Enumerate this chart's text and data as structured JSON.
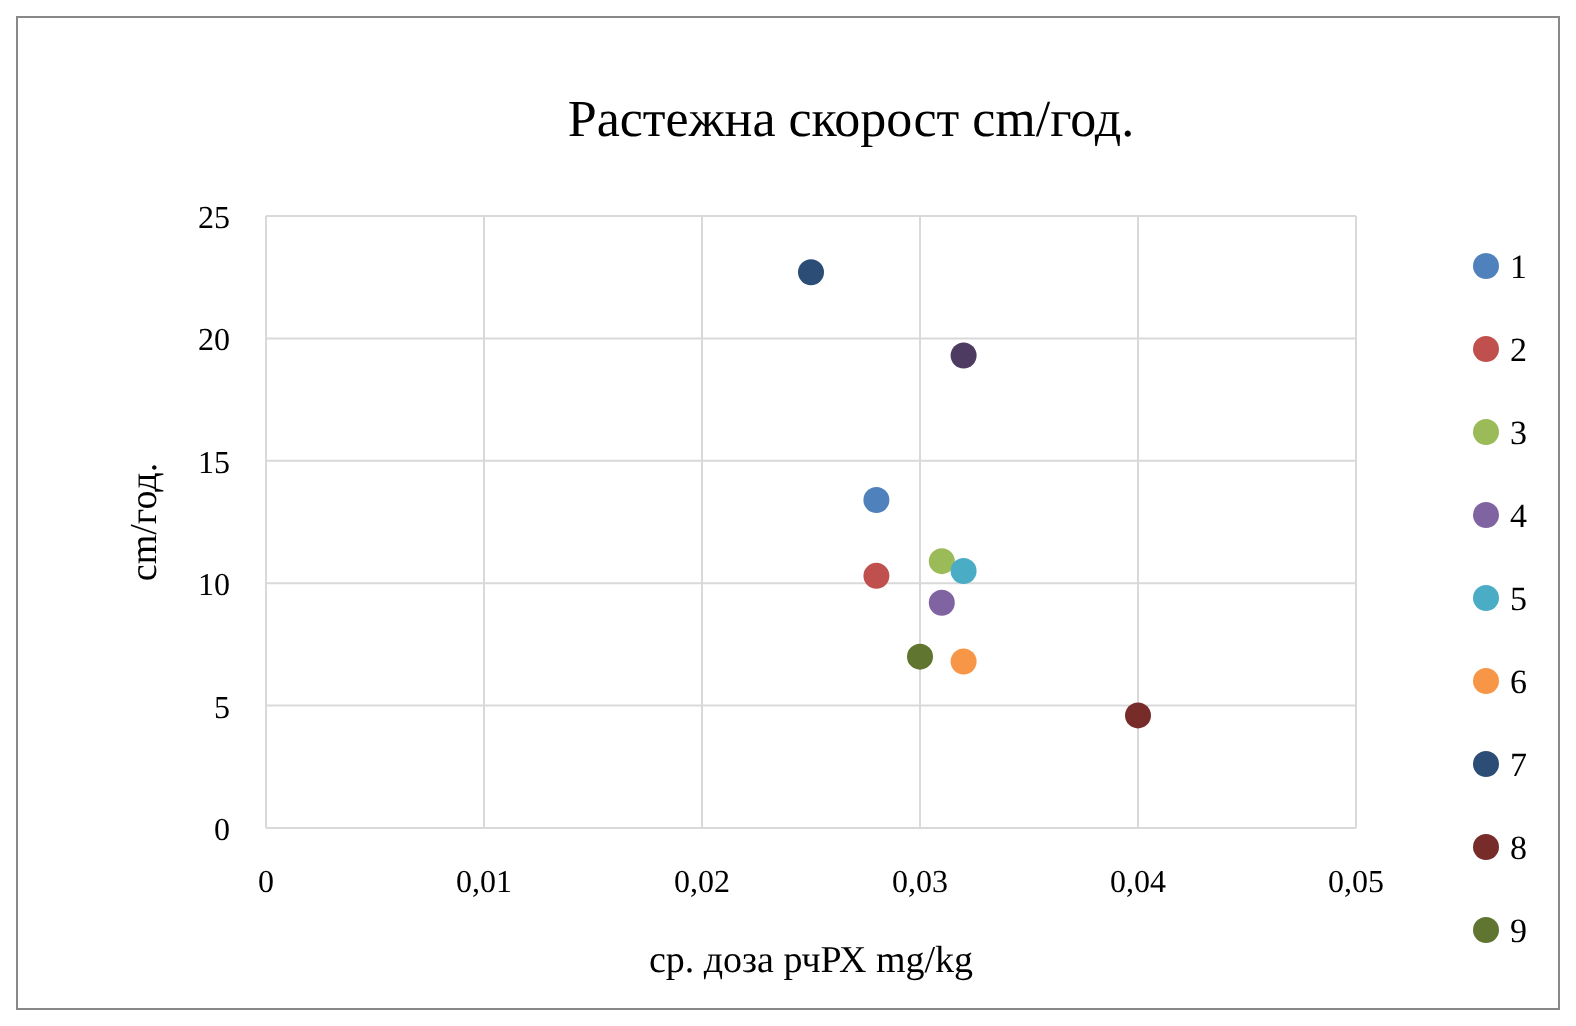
{
  "chart_data": {
    "type": "scatter",
    "title": "Растежна скорост cm/год.",
    "xlabel": "ср. доза рчРХ mg/kg",
    "ylabel": "cm/год.",
    "xlim": [
      0,
      0.05
    ],
    "xticks": [
      {
        "value": 0,
        "label": "0"
      },
      {
        "value": 0.01,
        "label": "0,01"
      },
      {
        "value": 0.02,
        "label": "0,02"
      },
      {
        "value": 0.03,
        "label": "0,03"
      },
      {
        "value": 0.04,
        "label": "0,04"
      },
      {
        "value": 0.05,
        "label": "0,05"
      }
    ],
    "ylim": [
      0,
      25
    ],
    "yticks": [
      0,
      5,
      10,
      15,
      20,
      25
    ],
    "grid": true,
    "legend": "right",
    "marker": "circle",
    "series": [
      {
        "name": "1",
        "color": "#4f81bd",
        "x": [
          0.028
        ],
        "values": [
          13.4
        ]
      },
      {
        "name": "2",
        "color": "#c0504d",
        "x": [
          0.028
        ],
        "values": [
          10.3
        ]
      },
      {
        "name": "3",
        "color": "#9bbb59",
        "x": [
          0.031
        ],
        "values": [
          10.9
        ]
      },
      {
        "name": "4",
        "color": "#8064a2",
        "x": [
          0.031
        ],
        "values": [
          9.2
        ]
      },
      {
        "name": "5",
        "color": "#4bacc6",
        "x": [
          0.032
        ],
        "values": [
          10.5
        ]
      },
      {
        "name": "6",
        "color": "#f79646",
        "x": [
          0.032
        ],
        "values": [
          6.8
        ]
      },
      {
        "name": "7",
        "color": "#2c4d75",
        "x": [
          0.025
        ],
        "values": [
          22.7
        ]
      },
      {
        "name": "8",
        "color": "#772c2a",
        "x": [
          0.04
        ],
        "values": [
          4.6
        ]
      },
      {
        "name": "9",
        "color": "#5f7530",
        "x": [
          0.03
        ],
        "values": [
          7.0
        ]
      },
      {
        "color": "#4d3b62",
        "x": [
          0.032
        ],
        "values": [
          19.3
        ]
      }
    ]
  }
}
